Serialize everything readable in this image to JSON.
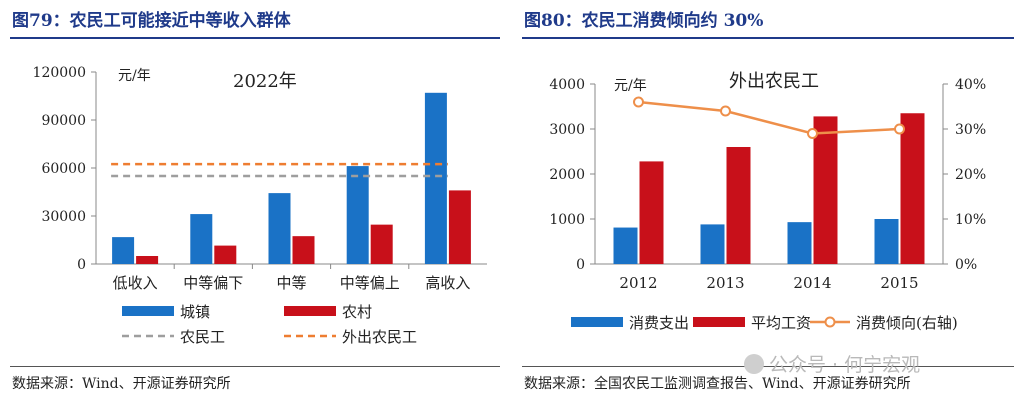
{
  "panels": {
    "left": {
      "title": "图79：农民工可能接近中等收入群体",
      "source": "数据来源：Wind、开源证券研究所"
    },
    "right": {
      "title": "图80：农民工消费倾向约 30%",
      "source": "数据来源：全国农民工监测调查报告、Wind、开源证券研究所"
    }
  },
  "watermark": {
    "text": "公众号 · 何宁宏观"
  },
  "chart_data": [
    {
      "type": "bar",
      "title": "2022年",
      "unit_label": "元/年",
      "categories": [
        "低收入",
        "中等偏下",
        "中等",
        "中等偏上",
        "高收入"
      ],
      "ylim": [
        0,
        120000
      ],
      "yticks": [
        0,
        30000,
        60000,
        90000,
        120000
      ],
      "series": [
        {
          "name": "城镇",
          "values": [
            16800,
            31200,
            44300,
            61200,
            107000
          ],
          "color": "#1a72c6"
        },
        {
          "name": "农村",
          "values": [
            5000,
            11500,
            17400,
            24600,
            46000
          ],
          "color": "#c8101a"
        }
      ],
      "reference_lines": [
        {
          "name": "农民工",
          "value": 55000,
          "color": "#9e9e9e",
          "style": "dashed"
        },
        {
          "name": "外出农民工",
          "value": 62400,
          "color": "#ee7d31",
          "style": "dashed"
        }
      ],
      "legend_placement": "bottom",
      "grid": false
    },
    {
      "type": "bar",
      "title": "外出农民工",
      "unit_label": "元/年",
      "categories": [
        "2012",
        "2013",
        "2014",
        "2015"
      ],
      "ylim": [
        0,
        4000
      ],
      "yticks": [
        0,
        1000,
        2000,
        3000,
        4000
      ],
      "y2lim": [
        0,
        40
      ],
      "y2ticks": [
        "0%",
        "10%",
        "20%",
        "30%",
        "40%"
      ],
      "series": [
        {
          "name": "消费支出",
          "values": [
            810,
            880,
            930,
            1000
          ],
          "color": "#1a72c6",
          "axis": "left"
        },
        {
          "name": "平均工资",
          "values": [
            2280,
            2600,
            3280,
            3350
          ],
          "color": "#c8101a",
          "axis": "left"
        },
        {
          "name": "消费倾向(右轴)",
          "type": "line",
          "values": [
            36,
            34,
            29,
            30
          ],
          "unit": "%",
          "color": "#ee8f4a",
          "axis": "right"
        }
      ],
      "legend_placement": "bottom",
      "grid": false
    }
  ]
}
